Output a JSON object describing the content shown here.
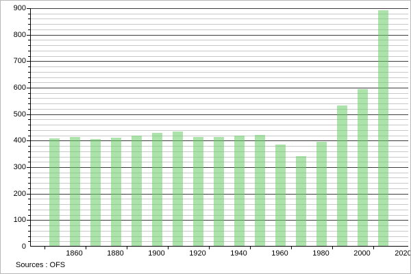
{
  "source_note": "Sources : OFS",
  "colors": {
    "bar_fill": "#66cc66",
    "bar_opacity": 0.55,
    "bar_flat_appearance": "#b1e4b1",
    "major_gridline": "#3a3a3a",
    "minor_gridline": "#c9c9c9",
    "axis": "#000000",
    "background": "#ffffff",
    "text": "#000000"
  },
  "chart_data": {
    "type": "bar",
    "categories": [
      "1850",
      "1860",
      "1870",
      "1880",
      "1890",
      "1900",
      "1910",
      "1920",
      "1930",
      "1940",
      "1950",
      "1960",
      "1970",
      "1980",
      "1990",
      "2000",
      "2010"
    ],
    "values": [
      405,
      412,
      404,
      409,
      417,
      428,
      433,
      410,
      412,
      416,
      419,
      383,
      339,
      392,
      531,
      592,
      889
    ],
    "title": "",
    "xlabel": "",
    "ylabel": "",
    "ylim": [
      0,
      900
    ],
    "y_major_step": 100,
    "y_minor_step": 20,
    "y_tick_labels": [
      "0",
      "100",
      "200",
      "300",
      "400",
      "500",
      "600",
      "700",
      "800",
      "900"
    ],
    "x_tick_labels": [
      "1860",
      "1880",
      "1900",
      "1920",
      "1940",
      "1960",
      "1980",
      "2000",
      "2020"
    ],
    "grid": "horizontal major+minor",
    "legend_position": "none"
  }
}
